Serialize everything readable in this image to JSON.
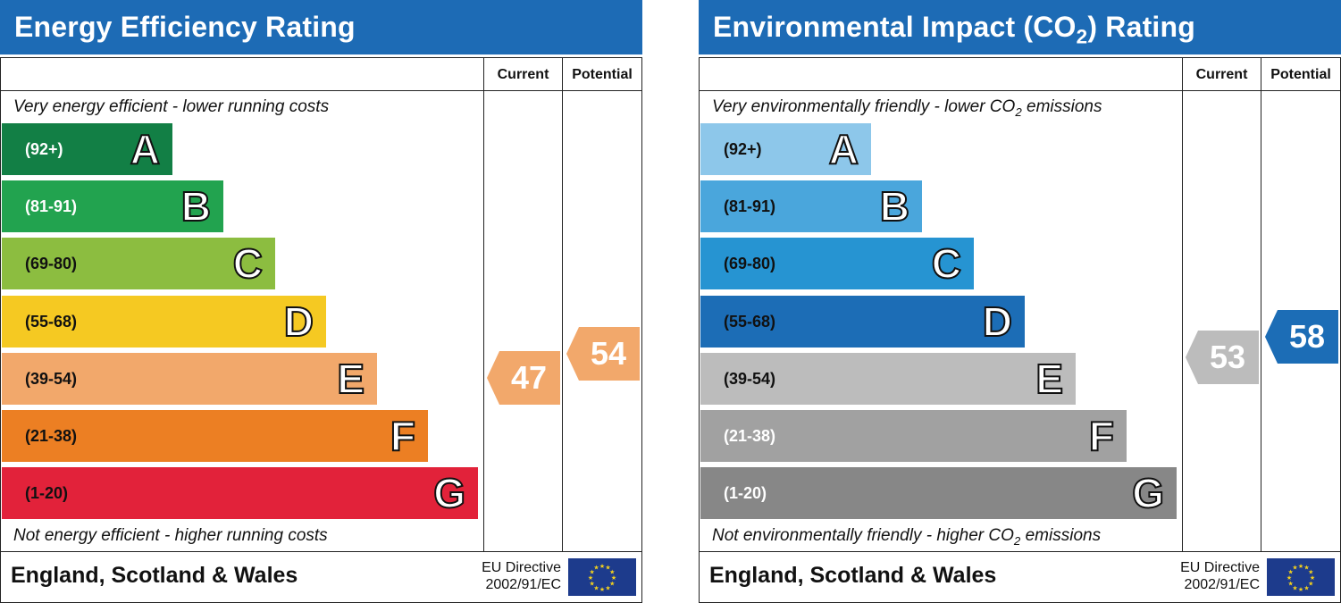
{
  "panels": [
    {
      "title": "Energy Efficiency Rating",
      "title_sub": "",
      "title_suffix": "",
      "col_current": "Current",
      "col_potential": "Potential",
      "top_text": "Very energy efficient - lower running costs",
      "bottom_text": "Not energy efficient - higher running costs",
      "region": "England, Scotland & Wales",
      "eu_line1": "EU Directive",
      "eu_line2": "2002/91/EC"
    },
    {
      "title": "Environmental Impact (CO",
      "title_sub": "2",
      "title_suffix": ") Rating",
      "col_current": "Current",
      "col_potential": "Potential",
      "top_text_a": "Very environmentally friendly - lower CO",
      "top_text_sub": "2",
      "top_text_b": " emissions",
      "bottom_text_a": "Not environmentally friendly - higher CO",
      "bottom_text_sub": "2",
      "bottom_text_b": " emissions",
      "region": "England, Scotland & Wales",
      "eu_line1": "EU Directive",
      "eu_line2": "2002/91/EC"
    }
  ],
  "chart_data": [
    {
      "type": "bar",
      "title": "Energy Efficiency Rating",
      "categories": [
        "A",
        "B",
        "C",
        "D",
        "E",
        "F",
        "G"
      ],
      "ranges": [
        "(92+)",
        "(81-91)",
        "(69-80)",
        "(55-68)",
        "(39-54)",
        "(21-38)",
        "(1-20)"
      ],
      "colors": [
        "#127f45",
        "#22a34f",
        "#8cbd40",
        "#f5c922",
        "#f2a86b",
        "#ec7f23",
        "#e2223a"
      ],
      "range_text_colors": [
        "#ffffff",
        "#ffffff",
        "#111111",
        "#111111",
        "#111111",
        "#111111",
        "#111111"
      ],
      "current": 47,
      "potential": 54,
      "current_color": "#f2a86b",
      "potential_color": "#f2a86b"
    },
    {
      "type": "bar",
      "title": "Environmental Impact (CO2) Rating",
      "categories": [
        "A",
        "B",
        "C",
        "D",
        "E",
        "F",
        "G"
      ],
      "ranges": [
        "(92+)",
        "(81-91)",
        "(69-80)",
        "(55-68)",
        "(39-54)",
        "(21-38)",
        "(1-20)"
      ],
      "colors": [
        "#8dc7ea",
        "#4aa6dc",
        "#2694d2",
        "#1c6db6",
        "#bcbcbc",
        "#a1a1a1",
        "#878787"
      ],
      "range_text_colors": [
        "#111111",
        "#111111",
        "#111111",
        "#111111",
        "#111111",
        "#ffffff",
        "#ffffff"
      ],
      "current": 53,
      "potential": 58,
      "current_color": "#bcbcbc",
      "potential_color": "#1c6db6"
    }
  ]
}
